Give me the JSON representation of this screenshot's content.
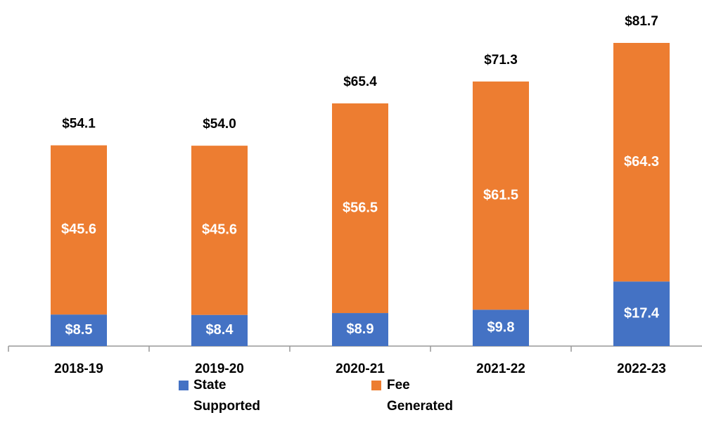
{
  "chart_data": {
    "type": "stacked_bar",
    "categories": [
      "2018-19",
      "2019-20",
      "2020-21",
      "2021-22",
      "2022-23"
    ],
    "series": [
      {
        "name": "State Supported",
        "color": "#4472c4",
        "values": [
          8.5,
          8.4,
          8.9,
          9.8,
          17.4
        ],
        "value_labels": [
          "$8.5",
          "$8.4",
          "$8.9",
          "$9.8",
          "$17.4"
        ]
      },
      {
        "name": "Fee Generated",
        "color": "#ed7d31",
        "values": [
          45.6,
          45.6,
          56.5,
          61.5,
          64.3
        ],
        "value_labels": [
          "$45.6",
          "$45.6",
          "$56.5",
          "$61.5",
          "$64.3"
        ]
      }
    ],
    "totals": [
      54.1,
      54.0,
      65.4,
      71.3,
      81.7
    ],
    "total_labels": [
      "$54.1",
      "$54.0",
      "$65.4",
      "$71.3",
      "$81.7"
    ]
  }
}
